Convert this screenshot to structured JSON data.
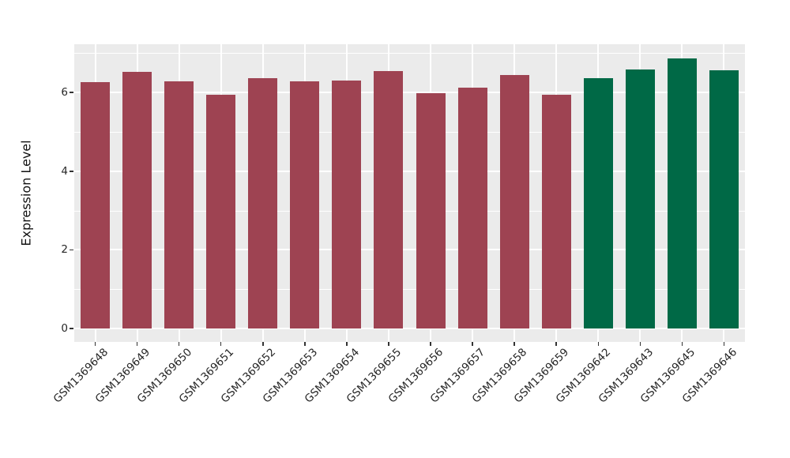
{
  "chart_data": {
    "type": "bar",
    "ylabel": "Expression Level",
    "xlabel": "",
    "categories": [
      "GSM1369648",
      "GSM1369649",
      "GSM1369650",
      "GSM1369651",
      "GSM1369652",
      "GSM1369653",
      "GSM1369654",
      "GSM1369655",
      "GSM1369656",
      "GSM1369657",
      "GSM1369658",
      "GSM1369659",
      "GSM1369642",
      "GSM1369643",
      "GSM1369645",
      "GSM1369646"
    ],
    "values": [
      6.26,
      6.53,
      6.28,
      5.95,
      6.37,
      6.29,
      6.31,
      6.54,
      5.99,
      6.12,
      6.44,
      5.94,
      6.37,
      6.58,
      6.87,
      6.57
    ],
    "bar_colors": [
      "#9E4352",
      "#9E4352",
      "#9E4352",
      "#9E4352",
      "#9E4352",
      "#9E4352",
      "#9E4352",
      "#9E4352",
      "#9E4352",
      "#9E4352",
      "#9E4352",
      "#9E4352",
      "#006946",
      "#006946",
      "#006946",
      "#006946"
    ],
    "groups": [
      {
        "color": "#9E4352",
        "sample_count": 12
      },
      {
        "color": "#006946",
        "sample_count": 4
      }
    ],
    "yticks": [
      0,
      2,
      4,
      6
    ],
    "minor_yticks": [
      1,
      3,
      5,
      7
    ],
    "ylim": [
      -0.36,
      7.23
    ],
    "x_tick_rotation_deg": 45,
    "grid": true,
    "legend_position": "none",
    "panel_bg": "#EBEBEB",
    "grid_color": "#FFFFFF",
    "tick_mark_color": "#333333",
    "axis_text_color": "#262626",
    "axis_title_color": "#111111"
  }
}
